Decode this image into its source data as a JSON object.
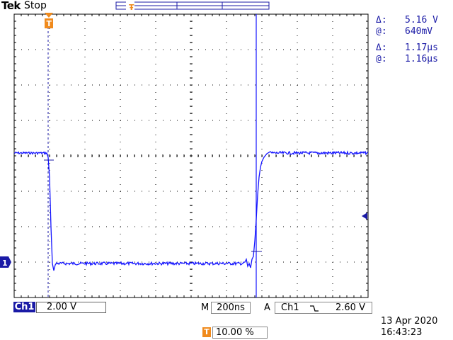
{
  "header": {
    "brand": "Tek",
    "acq_state": "Stop"
  },
  "readouts": {
    "amplitude": {
      "delta_symbol": "Δ:",
      "delta_value": "5.16 V",
      "at_symbol": "@:",
      "at_value": "640mV"
    },
    "time": {
      "delta_symbol": "Δ:",
      "delta_value": "1.17µs",
      "at_symbol": "@:",
      "at_value": "1.16µs"
    }
  },
  "channel": {
    "marker": "1",
    "tag": "Ch1",
    "scale": "2.00 V"
  },
  "horizontal": {
    "mode": "M",
    "timebase": "200ns"
  },
  "trigger": {
    "mode": "A",
    "source": "Ch1",
    "slope_icon": "falling-edge-icon",
    "level": "2.60 V",
    "marker": "T",
    "position_label": "T",
    "position": "10.00 %"
  },
  "timestamp": {
    "date": "13 Apr  2020",
    "time": "16:43:23"
  },
  "colors": {
    "trace": "#1414ff",
    "trigger_accent": "#f08a1c",
    "channel": "#1a1aa6",
    "graticule": "#000000"
  }
}
